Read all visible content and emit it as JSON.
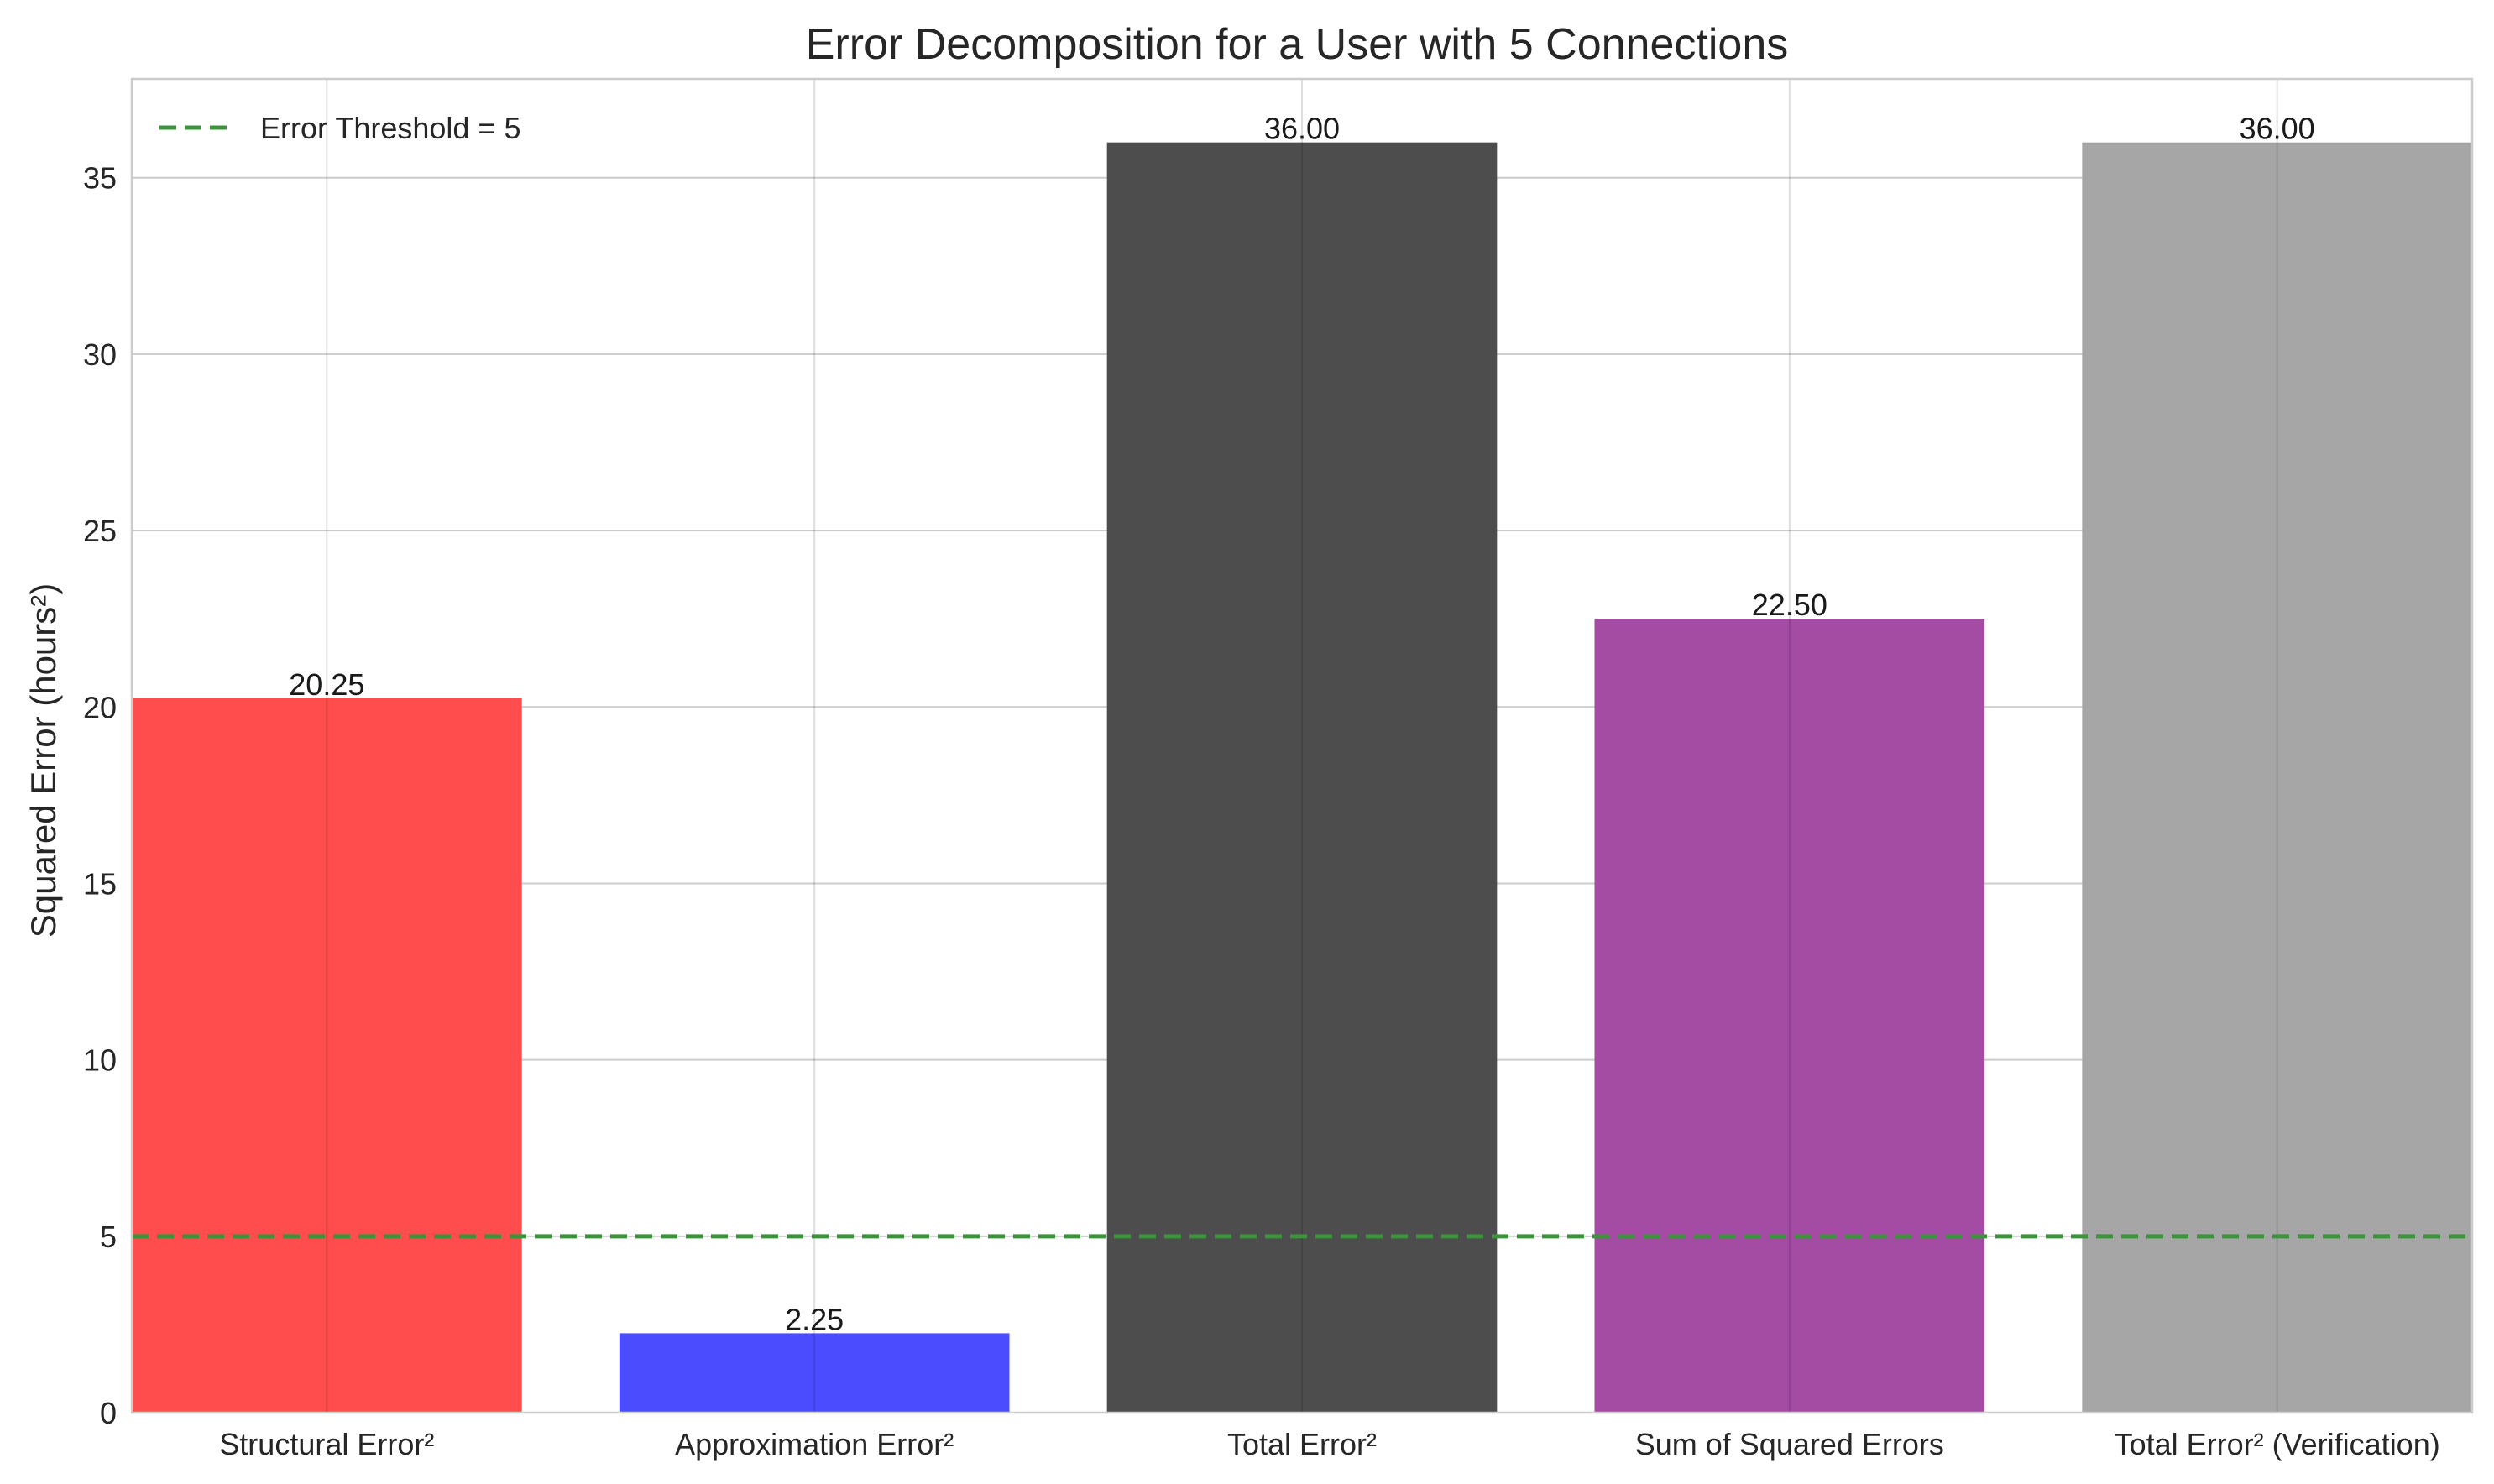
{
  "chart_data": {
    "type": "bar",
    "title": "Error Decomposition for a User with 5 Connections",
    "xlabel": "",
    "ylabel": "Squared Error (hours²)",
    "categories": [
      "Structural Error²",
      "Approximation Error²",
      "Total Error²",
      "Sum of Squared Errors",
      "Total Error² (Verification)"
    ],
    "values": [
      20.25,
      2.25,
      36.0,
      22.5,
      36.0
    ],
    "value_labels": [
      "20.25",
      "2.25",
      "36.00",
      "22.50",
      "36.00"
    ],
    "bar_colors": [
      "#ff4c4c",
      "#4c4cff",
      "#4d4d4d",
      "#a44ca4",
      "#a6a6a6"
    ],
    "ylim": [
      0,
      37.8
    ],
    "yticks": [
      0,
      5,
      10,
      15,
      20,
      25,
      30,
      35
    ],
    "grid": true,
    "threshold": {
      "value": 5,
      "label": "Error Threshold = 5",
      "color": "#3a943a",
      "style": "dashed"
    },
    "legend_position": "top-left"
  }
}
